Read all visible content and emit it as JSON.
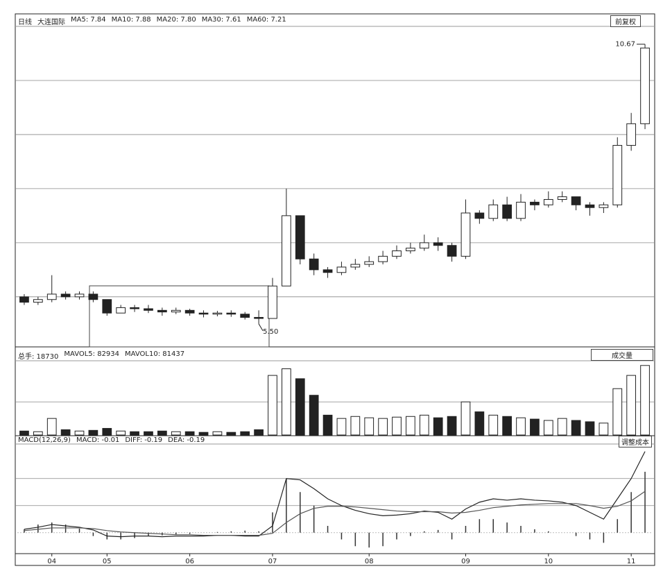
{
  "header": {
    "period": "日线",
    "name": "大连国际",
    "indicators": [
      "MA5: 7.84",
      "MA10: 7.88",
      "MA20: 7.80",
      "MA30: 7.61",
      "MA60: 7.21"
    ],
    "adjust": "前复权"
  },
  "chart_data": [
    {
      "type": "candlestick",
      "open": [
        6.0,
        5.9,
        5.95,
        6.05,
        6.0,
        6.05,
        5.95,
        5.7,
        5.8,
        5.78,
        5.75,
        5.72,
        5.75,
        5.7,
        5.68,
        5.7,
        5.68,
        5.62,
        5.6,
        6.2,
        7.5,
        6.7,
        6.5,
        6.45,
        6.55,
        6.6,
        6.65,
        6.75,
        6.85,
        6.9,
        7.0,
        6.95,
        6.75,
        7.55,
        7.45,
        7.7,
        7.45,
        7.75,
        7.7,
        7.8,
        7.85,
        7.7,
        7.65,
        7.7,
        8.8,
        9.2
      ],
      "high": [
        6.05,
        6.0,
        6.4,
        6.1,
        6.1,
        6.1,
        5.95,
        5.85,
        5.85,
        5.85,
        5.8,
        5.8,
        5.78,
        5.75,
        5.74,
        5.75,
        5.72,
        5.75,
        6.35,
        8.0,
        7.5,
        6.8,
        6.55,
        6.65,
        6.7,
        6.75,
        6.85,
        6.95,
        7.0,
        7.15,
        7.1,
        7.0,
        7.8,
        7.6,
        7.8,
        7.85,
        7.9,
        7.8,
        7.95,
        7.95,
        7.85,
        7.75,
        7.75,
        8.95,
        9.4,
        10.67
      ],
      "low": [
        5.85,
        5.85,
        5.9,
        5.95,
        5.95,
        5.9,
        5.65,
        5.7,
        5.72,
        5.7,
        5.65,
        5.68,
        5.65,
        5.62,
        5.64,
        5.63,
        5.58,
        5.5,
        5.6,
        6.2,
        6.6,
        6.4,
        6.35,
        6.4,
        6.5,
        6.55,
        6.6,
        6.7,
        6.8,
        6.85,
        6.85,
        6.65,
        6.7,
        7.35,
        7.4,
        7.4,
        7.4,
        7.6,
        7.65,
        7.75,
        7.6,
        7.5,
        7.55,
        7.65,
        8.7,
        9.1
      ],
      "close": [
        5.9,
        5.95,
        6.05,
        6.0,
        6.05,
        5.95,
        5.7,
        5.8,
        5.78,
        5.75,
        5.72,
        5.75,
        5.7,
        5.68,
        5.7,
        5.68,
        5.62,
        5.6,
        6.2,
        7.5,
        6.7,
        6.5,
        6.45,
        6.55,
        6.6,
        6.65,
        6.75,
        6.85,
        6.9,
        7.0,
        6.95,
        6.75,
        7.55,
        7.45,
        7.7,
        7.45,
        7.75,
        7.7,
        7.8,
        7.85,
        7.7,
        7.65,
        7.7,
        8.8,
        9.2,
        10.6
      ],
      "ylim": [
        5.1,
        11.0
      ],
      "yticks": [
        6,
        7,
        8,
        9,
        10
      ],
      "grid": true,
      "annotations": [
        10.67,
        {
          "value": 5.5,
          "label": "5.50"
        }
      ]
    },
    {
      "type": "bar",
      "header_items": [
        "总手: 18730",
        "MAVOL5: 82934",
        "MAVOL10: 81437"
      ],
      "selector": "成交量",
      "values": [
        6,
        5,
        25,
        8,
        6,
        7,
        10,
        6,
        5,
        5,
        6,
        5,
        5,
        4,
        5,
        4,
        5,
        8,
        90,
        100,
        85,
        60,
        30,
        25,
        28,
        26,
        25,
        27,
        28,
        30,
        26,
        28,
        50,
        35,
        30,
        28,
        26,
        24,
        22,
        25,
        22,
        20,
        18,
        70,
        90,
        105
      ],
      "ylim": [
        0,
        110
      ],
      "yticks": [
        50
      ],
      "grid": true
    },
    {
      "type": "macd",
      "header_items": [
        "MACD(12,26,9)",
        "MACD: -0.01",
        "DIFF: -0.19",
        "DEA: -0.19"
      ],
      "tag": "调整成本",
      "categories": [
        null,
        null,
        "04",
        null,
        null,
        null,
        "05",
        null,
        null,
        null,
        null,
        null,
        "06",
        null,
        null,
        null,
        null,
        null,
        "07",
        null,
        null,
        null,
        null,
        null,
        null,
        "08",
        null,
        null,
        null,
        null,
        null,
        null,
        "09",
        null,
        null,
        null,
        null,
        null,
        "10",
        null,
        null,
        null,
        null,
        null,
        "11",
        null
      ],
      "histogram": [
        0.05,
        0.12,
        0.15,
        0.12,
        0.06,
        -0.05,
        -0.1,
        -0.1,
        -0.08,
        -0.05,
        -0.04,
        -0.03,
        -0.02,
        0,
        0.01,
        0.02,
        0.03,
        0.02,
        0.3,
        0.8,
        0.6,
        0.4,
        0.1,
        -0.1,
        -0.2,
        -0.22,
        -0.2,
        -0.1,
        -0.05,
        0.02,
        0.04,
        -0.1,
        0.1,
        0.2,
        0.2,
        0.15,
        0.1,
        0.05,
        0.02,
        0,
        -0.05,
        -0.1,
        -0.15,
        0.2,
        0.6,
        0.9
      ],
      "series": [
        {
          "color": "#222",
          "values": [
            0.05,
            0.08,
            0.12,
            0.1,
            0.08,
            0.04,
            -0.05,
            -0.06,
            -0.05,
            -0.05,
            -0.06,
            -0.05,
            -0.05,
            -0.05,
            -0.04,
            -0.04,
            -0.05,
            -0.05,
            0.1,
            0.8,
            0.78,
            0.65,
            0.5,
            0.4,
            0.33,
            0.28,
            0.25,
            0.26,
            0.28,
            0.32,
            0.3,
            0.2,
            0.35,
            0.45,
            0.5,
            0.48,
            0.5,
            0.48,
            0.47,
            0.45,
            0.4,
            0.3,
            0.2,
            0.5,
            0.8,
            1.2
          ]
        },
        {
          "color": "#555",
          "values": [
            0.03,
            0.05,
            0.07,
            0.07,
            0.07,
            0.06,
            0.03,
            0.01,
            0,
            -0.01,
            -0.02,
            -0.03,
            -0.03,
            -0.04,
            -0.04,
            -0.04,
            -0.04,
            -0.04,
            -0.01,
            0.15,
            0.28,
            0.36,
            0.39,
            0.39,
            0.38,
            0.36,
            0.34,
            0.32,
            0.31,
            0.31,
            0.31,
            0.29,
            0.3,
            0.33,
            0.37,
            0.39,
            0.41,
            0.42,
            0.43,
            0.43,
            0.43,
            0.4,
            0.36,
            0.39,
            0.47,
            0.61
          ]
        }
      ],
      "ylim": [
        -0.3,
        1.3
      ],
      "yticks": [
        0.4,
        0.8
      ],
      "grid": true
    }
  ]
}
